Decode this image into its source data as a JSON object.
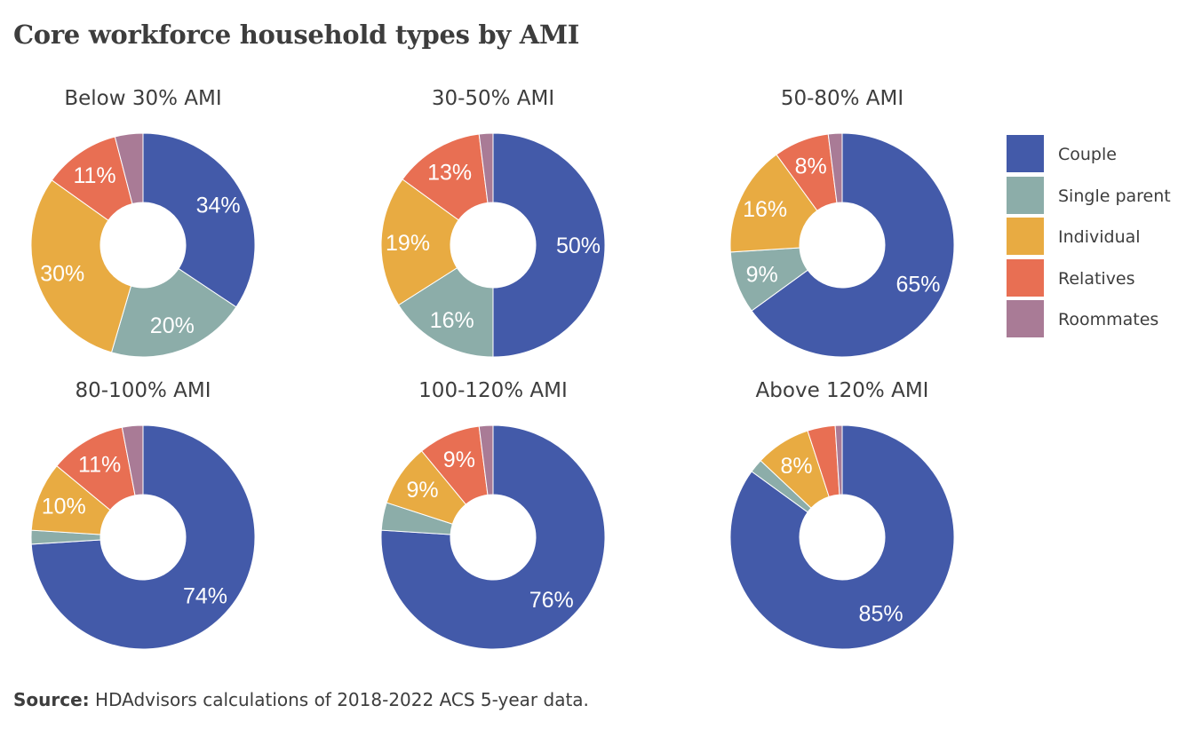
{
  "title": "Core workforce household types by AMI",
  "source": {
    "prefix": "Source:",
    "text": " HDAdvisors  calculations of 2018-2022  ACS 5-year  data."
  },
  "legend": [
    {
      "name": "Couple",
      "color": "#435aa9"
    },
    {
      "name": "Single parent",
      "color": "#8cada9"
    },
    {
      "name": "Individual",
      "color": "#e8ab42"
    },
    {
      "name": "Relatives",
      "color": "#e86f53"
    },
    {
      "name": "Roommates",
      "color": "#a97b96"
    }
  ],
  "chart_data": {
    "type": "pie",
    "subtype": "donut",
    "categories": [
      "Couple",
      "Single parent",
      "Individual",
      "Relatives",
      "Roommates"
    ],
    "panels": [
      {
        "title": "Below 30% AMI",
        "values": [
          34,
          20,
          30,
          11,
          4
        ],
        "labels": [
          "34%",
          "20%",
          "30%",
          "11%",
          ""
        ]
      },
      {
        "title": "30-50% AMI",
        "values": [
          50,
          16,
          19,
          13,
          2
        ],
        "labels": [
          "50%",
          "16%",
          "19%",
          "13%",
          ""
        ]
      },
      {
        "title": "50-80% AMI",
        "values": [
          65,
          9,
          16,
          8,
          2
        ],
        "labels": [
          "65%",
          "9%",
          "16%",
          "8%",
          ""
        ]
      },
      {
        "title": "80-100% AMI",
        "values": [
          74,
          2,
          10,
          11,
          3
        ],
        "labels": [
          "74%",
          "",
          "10%",
          "11%",
          ""
        ]
      },
      {
        "title": "100-120% AMI",
        "values": [
          76,
          4,
          9,
          9,
          2
        ],
        "labels": [
          "76%",
          "",
          "9%",
          "9%",
          ""
        ]
      },
      {
        "title": "Above 120% AMI",
        "values": [
          85,
          2,
          8,
          4,
          1
        ],
        "labels": [
          "85%",
          "",
          "8%",
          "",
          ""
        ]
      }
    ],
    "legend_position": "right"
  }
}
